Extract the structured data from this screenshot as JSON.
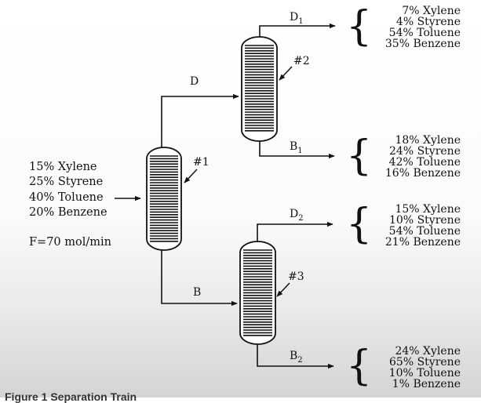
{
  "feed": {
    "composition": [
      "15% Xylene",
      "25% Styrene",
      "40% Toluene",
      "20% Benzene"
    ],
    "flow": "F=70 mol/min"
  },
  "columns": {
    "c1": "#1",
    "c2": "#2",
    "c3": "#3"
  },
  "streams": {
    "D": "D",
    "B": "B",
    "D1": {
      "base": "D",
      "sub": "1"
    },
    "B1": {
      "base": "B",
      "sub": "1"
    },
    "D2": {
      "base": "D",
      "sub": "2"
    },
    "B2": {
      "base": "B",
      "sub": "2"
    }
  },
  "outputs": {
    "D1": [
      "7% Xylene",
      "4% Styrene",
      "54% Toluene",
      "35% Benzene"
    ],
    "B1": [
      "18% Xylene",
      "24% Styrene",
      "42% Toluene",
      "16% Benzene"
    ],
    "D2": [
      "15% Xylene",
      "10% Styrene",
      "54% Toluene",
      "21% Benzene"
    ],
    "B2": [
      "24% Xylene",
      "65% Styrene",
      "10% Toluene",
      "1% Benzene"
    ]
  },
  "brace": "{",
  "caption": "Figure 1 Separation Train"
}
